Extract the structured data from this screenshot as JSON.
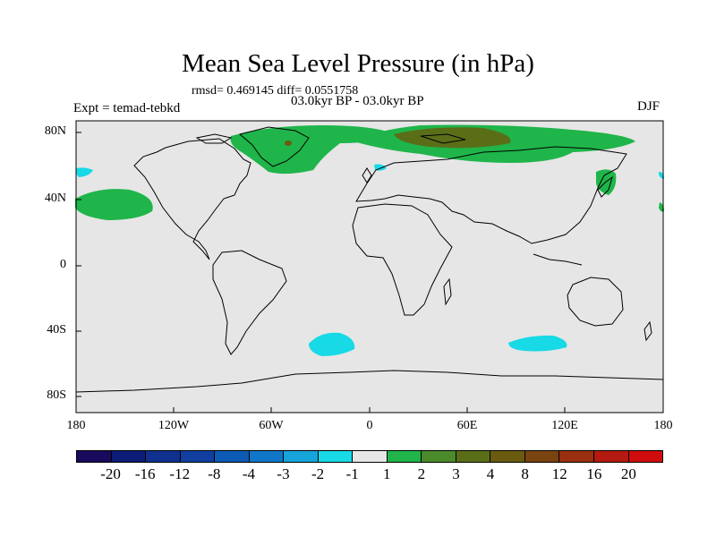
{
  "title": "Mean Sea Level Pressure (in hPa)",
  "stats": "rmsd= 0.469145 diff= 0.0551758",
  "period": "03.0kyr BP - 03.0kyr BP",
  "experiment": "Expt = temad-tebkd",
  "season": "DJF",
  "map": {
    "lat_labels": [
      "80N",
      "40N",
      "0",
      "40S",
      "80S"
    ],
    "lon_labels": [
      "180",
      "120W",
      "60W",
      "0",
      "60E",
      "120E",
      "180"
    ],
    "background_color": "#e6e6e6"
  },
  "colorbar": {
    "labels": [
      "-20",
      "-16",
      "-12",
      "-8",
      "-4",
      "-3",
      "-2",
      "-1",
      "1",
      "2",
      "3",
      "4",
      "8",
      "12",
      "16",
      "20"
    ],
    "colors": [
      "#1a0a5e",
      "#0c1c78",
      "#10308e",
      "#103fa0",
      "#0c5ab4",
      "#1077c8",
      "#16a4da",
      "#18d9e6",
      "#e6e6e6",
      "#1fb54a",
      "#4b8a2a",
      "#5a6e18",
      "#6a5b10",
      "#7a4410",
      "#9a3010",
      "#b41a10",
      "#d00c0c"
    ]
  }
}
